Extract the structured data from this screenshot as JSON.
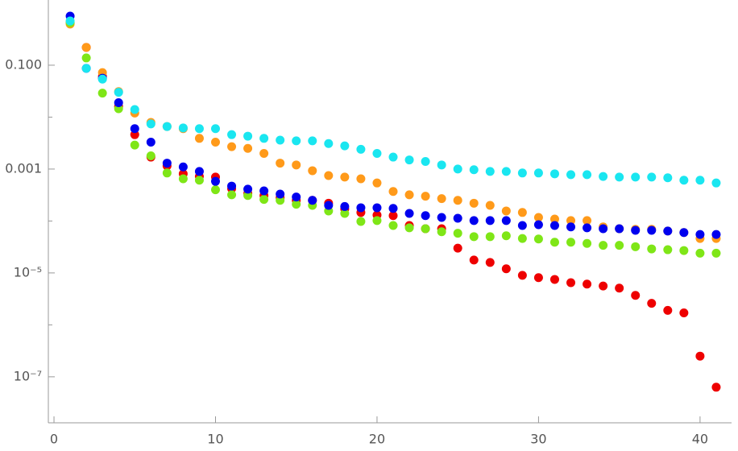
{
  "chart_data": {
    "type": "scatter",
    "log_y": true,
    "x": [
      1,
      2,
      3,
      4,
      5,
      6,
      7,
      8,
      9,
      10,
      11,
      12,
      13,
      14,
      15,
      16,
      17,
      18,
      19,
      20,
      21,
      22,
      23,
      24,
      25,
      26,
      27,
      28,
      29,
      30,
      31,
      32,
      33,
      34,
      35,
      36,
      37,
      38,
      39,
      40,
      41
    ],
    "series": [
      {
        "color": "#ee0000",
        "values": [
          0.66,
          0.22,
          0.061,
          0.016,
          0.0046,
          0.0017,
          0.00115,
          0.00081,
          0.00072,
          0.0007,
          0.00042,
          0.00034,
          0.00031,
          0.00028,
          0.00025,
          0.00025,
          0.00022,
          0.00017,
          0.000146,
          0.00013,
          0.000127,
          8.2e-05,
          7.1e-05,
          7.1e-05,
          3e-05,
          1.77e-05,
          1.59e-05,
          1.2e-05,
          9e-06,
          8.1e-06,
          7.5e-06,
          6.5e-06,
          6.1e-06,
          5.6e-06,
          5.1e-06,
          3.7e-06,
          2.6e-06,
          1.9e-06,
          1.7e-06,
          2.5e-07,
          6.3e-08
        ]
      },
      {
        "color": "#ff9a1a",
        "values": [
          0.62,
          0.22,
          0.072,
          0.031,
          0.012,
          0.0079,
          0.0066,
          0.006,
          0.0039,
          0.0033,
          0.0027,
          0.0025,
          0.002,
          0.0013,
          0.0012,
          0.00093,
          0.00075,
          0.0007,
          0.00065,
          0.00054,
          0.00037,
          0.00032,
          0.0003,
          0.00027,
          0.00025,
          0.00022,
          0.0002,
          0.000156,
          0.000146,
          0.000117,
          0.000109,
          0.000102,
          0.000102,
          7.7e-05,
          7.1e-05,
          6.9e-05,
          6.9e-05,
          6.4e-05,
          6e-05,
          4.6e-05,
          4.6e-05
        ]
      },
      {
        "color": "#7fe617",
        "values": [
          0.66,
          0.138,
          0.029,
          0.0145,
          0.0029,
          0.0018,
          0.00084,
          0.00065,
          0.00061,
          0.0004,
          0.00032,
          0.00031,
          0.00026,
          0.00025,
          0.00021,
          0.0002,
          0.000156,
          0.00014,
          9.8e-05,
          0.000102,
          8.2e-05,
          7.4e-05,
          7.1e-05,
          6.2e-05,
          5.8e-05,
          5e-05,
          5e-05,
          5.2e-05,
          4.6e-05,
          4.5e-05,
          3.9e-05,
          3.9e-05,
          3.7e-05,
          3.4e-05,
          3.4e-05,
          3.2e-05,
          2.9e-05,
          2.8e-05,
          2.7e-05,
          2.4e-05,
          2.4e-05
        ]
      },
      {
        "color": "#0000ee",
        "values": [
          0.88,
          0.087,
          0.056,
          0.019,
          0.006,
          0.0033,
          0.0013,
          0.0011,
          0.0009,
          0.00058,
          0.00047,
          0.00041,
          0.00038,
          0.00033,
          0.00029,
          0.00025,
          0.0002,
          0.00019,
          0.00018,
          0.00018,
          0.000175,
          0.00014,
          0.000127,
          0.000117,
          0.000113,
          0.000102,
          0.000102,
          0.000102,
          8.2e-05,
          8.5e-05,
          8.2e-05,
          7.7e-05,
          7.4e-05,
          7.1e-05,
          7.1e-05,
          6.6e-05,
          6.6e-05,
          6.4e-05,
          6e-05,
          5.5e-05,
          5.5e-05
        ]
      },
      {
        "color": "#1ae6f0",
        "values": [
          0.71,
          0.087,
          0.054,
          0.03,
          0.014,
          0.0074,
          0.0066,
          0.0062,
          0.006,
          0.006,
          0.0046,
          0.0043,
          0.0039,
          0.0036,
          0.0035,
          0.0035,
          0.0031,
          0.0028,
          0.0024,
          0.002,
          0.0017,
          0.0015,
          0.0014,
          0.0012,
          0.001,
          0.00097,
          0.0009,
          0.0009,
          0.00084,
          0.00084,
          0.00081,
          0.00078,
          0.00078,
          0.00072,
          0.0007,
          0.0007,
          0.0007,
          0.00068,
          0.00061,
          0.00061,
          0.00054
        ]
      }
    ],
    "xlim": [
      -0.35,
      41.95
    ],
    "ylim": [
      1.3e-08,
      1.8
    ],
    "xticks": [
      0,
      10,
      20,
      30,
      40
    ],
    "yticks": [
      {
        "value": 0.1,
        "label": "0.100"
      },
      {
        "value": 0.001,
        "label": "0.001"
      },
      {
        "value": 1e-05,
        "label": "10⁻⁵"
      },
      {
        "value": 1e-07,
        "label": "10⁻⁷"
      }
    ],
    "yminor": [
      0.01,
      0.0001,
      1e-06
    ]
  }
}
